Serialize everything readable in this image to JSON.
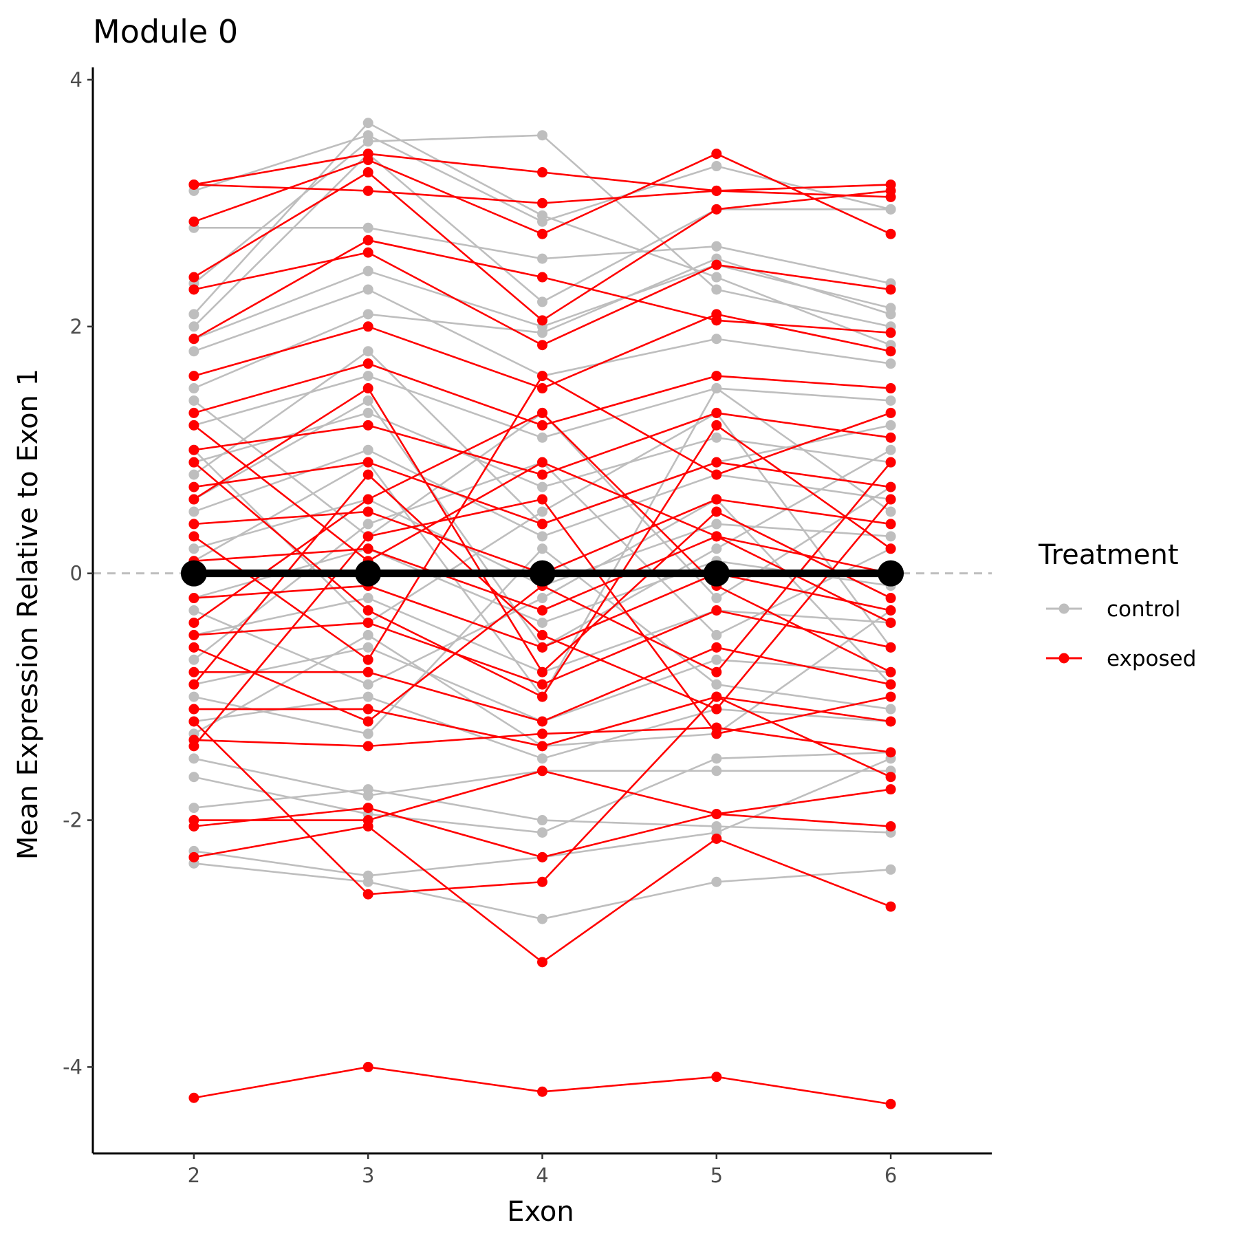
{
  "chart_data": {
    "type": "line",
    "title": "Module  0",
    "xlabel": "Exon",
    "ylabel": "Mean Expression Relative to Exon 1",
    "x": [
      2,
      3,
      4,
      5,
      6
    ],
    "x_tick_labels": [
      "2",
      "3",
      "4",
      "5",
      "6"
    ],
    "xlim": [
      1.42,
      6.58
    ],
    "ylim": [
      -4.7,
      4.1
    ],
    "y_ticks": [
      4,
      2,
      0,
      -2,
      -4
    ],
    "y_tick_labels": [
      "4",
      "2",
      "0",
      "-2",
      "-4"
    ],
    "reference_line": {
      "y": 0,
      "style": "dashed",
      "color": "#bebebe"
    },
    "legend": {
      "title": "Treatment",
      "placement": "right",
      "entries": [
        {
          "label": "control",
          "color": "#bebebe"
        },
        {
          "label": "exposed",
          "color": "#ff0000"
        }
      ]
    },
    "colors": {
      "control": "#bebebe",
      "exposed": "#ff0000",
      "mean": "#000000"
    },
    "mean_line": {
      "values": [
        0,
        0,
        0,
        0,
        0
      ]
    },
    "series": [
      {
        "group": "control",
        "values": [
          3.1,
          3.55,
          2.85,
          3.3,
          2.95
        ]
      },
      {
        "group": "control",
        "values": [
          2.8,
          2.8,
          2.55,
          2.65,
          2.35
        ]
      },
      {
        "group": "control",
        "values": [
          2.1,
          3.65,
          2.9,
          2.4,
          1.85
        ]
      },
      {
        "group": "control",
        "values": [
          2.35,
          3.5,
          3.55,
          2.3,
          2.0
        ]
      },
      {
        "group": "control",
        "values": [
          2.0,
          3.4,
          2.2,
          2.95,
          2.95
        ]
      },
      {
        "group": "control",
        "values": [
          1.9,
          2.45,
          2.0,
          2.5,
          2.15
        ]
      },
      {
        "group": "control",
        "values": [
          1.5,
          2.1,
          1.95,
          2.55,
          2.1
        ]
      },
      {
        "group": "control",
        "values": [
          1.8,
          2.3,
          1.6,
          1.9,
          1.7
        ]
      },
      {
        "group": "control",
        "values": [
          1.2,
          1.6,
          1.1,
          1.5,
          1.4
        ]
      },
      {
        "group": "control",
        "values": [
          0.9,
          1.3,
          0.7,
          1.1,
          0.9
        ]
      },
      {
        "group": "control",
        "values": [
          0.5,
          1.0,
          0.3,
          0.8,
          0.6
        ]
      },
      {
        "group": "control",
        "values": [
          0.2,
          0.6,
          -0.1,
          0.4,
          0.3
        ]
      },
      {
        "group": "control",
        "values": [
          -0.2,
          0.2,
          -0.4,
          0.1,
          -0.1
        ]
      },
      {
        "group": "control",
        "values": [
          -0.5,
          -0.2,
          -0.8,
          -0.3,
          -0.4
        ]
      },
      {
        "group": "control",
        "values": [
          -0.9,
          -0.6,
          -1.2,
          -0.7,
          -0.8
        ]
      },
      {
        "group": "control",
        "values": [
          -1.2,
          -1.0,
          -1.5,
          -1.1,
          -1.2
        ]
      },
      {
        "group": "control",
        "values": [
          -1.5,
          -1.8,
          -1.6,
          -1.6,
          -1.6
        ]
      },
      {
        "group": "control",
        "values": [
          -1.65,
          -1.95,
          -2.1,
          -1.5,
          -1.45
        ]
      },
      {
        "group": "control",
        "values": [
          -1.9,
          -1.75,
          -2.0,
          -2.05,
          -2.1
        ]
      },
      {
        "group": "control",
        "values": [
          -2.25,
          -2.45,
          -2.3,
          -2.1,
          -1.5
        ]
      },
      {
        "group": "control",
        "values": [
          -2.35,
          -2.5,
          -2.8,
          -2.5,
          -2.4
        ]
      },
      {
        "group": "control",
        "values": [
          0.6,
          1.4,
          -0.6,
          0.2,
          1.0
        ]
      },
      {
        "group": "control",
        "values": [
          -0.7,
          0.4,
          0.9,
          -0.5,
          0.2
        ]
      },
      {
        "group": "control",
        "values": [
          1.0,
          -0.4,
          0.5,
          1.3,
          -0.6
        ]
      },
      {
        "group": "control",
        "values": [
          0.1,
          0.9,
          -1.0,
          1.5,
          0.5
        ]
      },
      {
        "group": "control",
        "values": [
          -1.0,
          -1.3,
          0.2,
          -0.9,
          -1.1
        ]
      },
      {
        "group": "control",
        "values": [
          1.4,
          0.3,
          1.3,
          -0.2,
          0.7
        ]
      },
      {
        "group": "control",
        "values": [
          -0.3,
          -0.9,
          -0.2,
          0.6,
          -0.9
        ]
      },
      {
        "group": "control",
        "values": [
          0.8,
          1.8,
          0.4,
          0.9,
          1.2
        ]
      },
      {
        "group": "control",
        "values": [
          -1.3,
          -0.5,
          -1.4,
          -1.3,
          -0.3
        ]
      },
      {
        "group": "exposed",
        "values": [
          3.15,
          3.4,
          3.25,
          3.1,
          3.05
        ]
      },
      {
        "group": "exposed",
        "values": [
          3.15,
          3.1,
          3.0,
          3.1,
          3.15
        ]
      },
      {
        "group": "exposed",
        "values": [
          2.85,
          3.35,
          2.75,
          3.4,
          2.75
        ]
      },
      {
        "group": "exposed",
        "values": [
          2.4,
          3.25,
          2.05,
          2.95,
          3.1
        ]
      },
      {
        "group": "exposed",
        "values": [
          2.3,
          2.6,
          1.85,
          2.5,
          2.3
        ]
      },
      {
        "group": "exposed",
        "values": [
          1.9,
          2.7,
          2.4,
          2.05,
          1.95
        ]
      },
      {
        "group": "exposed",
        "values": [
          1.6,
          2.0,
          1.5,
          2.1,
          1.8
        ]
      },
      {
        "group": "exposed",
        "values": [
          1.3,
          1.7,
          1.2,
          1.6,
          1.5
        ]
      },
      {
        "group": "exposed",
        "values": [
          1.0,
          1.2,
          0.8,
          1.3,
          1.1
        ]
      },
      {
        "group": "exposed",
        "values": [
          0.7,
          0.9,
          0.4,
          0.9,
          0.7
        ]
      },
      {
        "group": "exposed",
        "values": [
          0.4,
          0.5,
          0.0,
          0.6,
          0.4
        ]
      },
      {
        "group": "exposed",
        "values": [
          0.1,
          0.2,
          -0.3,
          0.3,
          0.0
        ]
      },
      {
        "group": "exposed",
        "values": [
          -0.2,
          -0.1,
          -0.6,
          0.0,
          -0.3
        ]
      },
      {
        "group": "exposed",
        "values": [
          -0.5,
          -0.4,
          -0.9,
          -0.3,
          -0.6
        ]
      },
      {
        "group": "exposed",
        "values": [
          -0.8,
          -0.8,
          -1.2,
          -0.6,
          -0.9
        ]
      },
      {
        "group": "exposed",
        "values": [
          -1.1,
          -1.1,
          -1.4,
          -1.0,
          -1.2
        ]
      },
      {
        "group": "exposed",
        "values": [
          -1.35,
          -1.4,
          -1.3,
          -1.25,
          -1.45
        ]
      },
      {
        "group": "exposed",
        "values": [
          -2.0,
          -2.0,
          -1.6,
          -1.95,
          -1.75
        ]
      },
      {
        "group": "exposed",
        "values": [
          -2.05,
          -1.9,
          -2.3,
          -1.95,
          -2.05
        ]
      },
      {
        "group": "exposed",
        "values": [
          -2.3,
          -2.05,
          -3.15,
          -2.15,
          -2.7
        ]
      },
      {
        "group": "exposed",
        "values": [
          -1.2,
          -2.6,
          -2.5,
          -1.0,
          -1.65
        ]
      },
      {
        "group": "exposed",
        "values": [
          -0.4,
          0.6,
          1.3,
          -0.1,
          -0.8
        ]
      },
      {
        "group": "exposed",
        "values": [
          0.9,
          -0.3,
          -1.0,
          1.2,
          0.2
        ]
      },
      {
        "group": "exposed",
        "values": [
          -0.9,
          0.8,
          -0.5,
          -1.1,
          0.6
        ]
      },
      {
        "group": "exposed",
        "values": [
          1.2,
          0.1,
          0.9,
          0.3,
          -0.4
        ]
      },
      {
        "group": "exposed",
        "values": [
          0.3,
          -0.7,
          1.6,
          0.8,
          1.3
        ]
      },
      {
        "group": "exposed",
        "values": [
          -0.6,
          -1.2,
          -0.1,
          -0.8,
          0.9
        ]
      },
      {
        "group": "exposed",
        "values": [
          0.6,
          1.5,
          -0.8,
          0.5,
          -0.2
        ]
      },
      {
        "group": "exposed",
        "values": [
          -1.4,
          0.3,
          0.6,
          -1.3,
          -1.0
        ]
      },
      {
        "group": "exposed",
        "values": [
          -4.25,
          -4.0,
          -4.2,
          -4.08,
          -4.3
        ]
      }
    ]
  }
}
